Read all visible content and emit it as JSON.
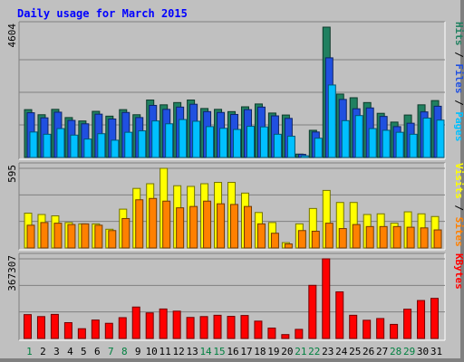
{
  "chart_data": {
    "type": "bar",
    "title": "Daily usage for March 2015",
    "categories": [
      "1",
      "2",
      "3",
      "4",
      "5",
      "6",
      "7",
      "8",
      "9",
      "10",
      "11",
      "12",
      "13",
      "14",
      "15",
      "16",
      "17",
      "18",
      "19",
      "20",
      "21",
      "22",
      "23",
      "24",
      "25",
      "26",
      "27",
      "28",
      "29",
      "30",
      "31"
    ],
    "weekend_days": [
      "1",
      "7",
      "8",
      "14",
      "15",
      "21",
      "22",
      "28",
      "29"
    ],
    "panels": [
      {
        "ylabel_max": "4604",
        "ylim": [
          0,
          4604
        ],
        "legend": [
          {
            "text": "Pages",
            "color": "#00c0ff"
          },
          {
            "text": "Files",
            "color": "#2050e0"
          },
          {
            "text": "Hits",
            "color": "#208060"
          }
        ],
        "series": [
          {
            "name": "Hits",
            "color": "#208060",
            "values": [
              1690,
              1510,
              1700,
              1410,
              1290,
              1630,
              1460,
              1690,
              1510,
              2030,
              1860,
              1940,
              2030,
              1730,
              1700,
              1620,
              1790,
              1890,
              1570,
              1500,
              120,
              960,
              4604,
              2240,
              2110,
              1940,
              1560,
              1250,
              1500,
              1860,
              2010
            ]
          },
          {
            "name": "Files",
            "color": "#2050e0",
            "values": [
              1580,
              1400,
              1600,
              1310,
              1190,
              1530,
              1360,
              1590,
              1410,
              1840,
              1700,
              1780,
              1880,
              1620,
              1590,
              1520,
              1690,
              1780,
              1470,
              1380,
              110,
              900,
              3520,
              2050,
              1720,
              1750,
              1450,
              1090,
              1210,
              1610,
              1810
            ]
          },
          {
            "name": "Pages",
            "color": "#00c0ff",
            "values": [
              900,
              820,
              1020,
              790,
              650,
              840,
              610,
              890,
              940,
              1290,
              1190,
              1340,
              1280,
              1090,
              1030,
              990,
              1100,
              1080,
              820,
              750,
              60,
              680,
              2560,
              1300,
              1480,
              1020,
              960,
              890,
              820,
              1390,
              1320
            ]
          }
        ]
      },
      {
        "ylabel_max": "595",
        "ylim": [
          0,
          595
        ],
        "legend": [
          {
            "text": "Sites",
            "color": "#ff8000"
          },
          {
            "text": "Visits",
            "color": "#ffff00"
          }
        ],
        "series": [
          {
            "name": "Visits",
            "color": "#ffff00",
            "values": [
              260,
              250,
              240,
              190,
              180,
              180,
              140,
              290,
              445,
              480,
              595,
              465,
              460,
              480,
              490,
              490,
              410,
              265,
              190,
              40,
              180,
              295,
              430,
              340,
              340,
              250,
              255,
              185,
              270,
              255,
              235
            ]
          },
          {
            "name": "Sites",
            "color": "#ff8000",
            "values": [
              170,
              190,
              185,
              175,
              180,
              170,
              130,
              220,
              360,
              370,
              350,
              300,
              310,
              350,
              330,
              325,
              310,
              180,
              110,
              30,
              130,
              125,
              185,
              145,
              175,
              160,
              160,
              160,
              155,
              150,
              135
            ]
          }
        ]
      },
      {
        "ylabel_max": "367307",
        "ylim": [
          0,
          367307
        ],
        "legend": [
          {
            "text": "KBytes",
            "color": "#ff0000"
          }
        ],
        "series": [
          {
            "name": "KBytes",
            "color": "#ff0000",
            "values": [
              110000,
              101000,
              111000,
              73000,
              45000,
              85000,
              70000,
              96000,
              145000,
              118000,
              136000,
              126000,
              97000,
              101000,
              107000,
              102000,
              106000,
              80000,
              48000,
              18000,
              42000,
              245000,
              367307,
              215000,
              107000,
              84000,
              92000,
              65000,
              135000,
              175000,
              185000
            ]
          }
        ]
      }
    ]
  }
}
